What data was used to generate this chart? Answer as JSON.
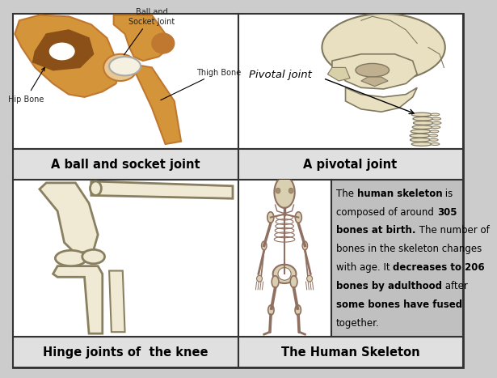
{
  "background_color": "#cccccc",
  "cell_bg_white": "#ffffff",
  "cell_bg_gray": "#c0c0c0",
  "label_bg": "#e0e0e0",
  "border_color": "#333333",
  "top_left_label": "A ball and socket joint",
  "top_right_label": "A pivotal joint",
  "bottom_left_label": "Hinge joints of  the knee",
  "bottom_center_label": "The Human Skeleton",
  "font_size_label": 10.5,
  "font_size_info": 8.5,
  "font_size_annot": 7.5,
  "hip_light": "#d4943a",
  "hip_mid": "#c07830",
  "hip_dark": "#8a5018",
  "hip_socket": "#e8c890",
  "bone_light": "#f0ead5",
  "bone_mid": "#e0d4b0",
  "bone_edge": "#888060",
  "skull_fill": "#e8e0c0",
  "skull_edge": "#807860",
  "info_lines": [
    [
      [
        "The ",
        false
      ],
      [
        "human skeleton",
        true
      ],
      [
        " is",
        false
      ]
    ],
    [
      [
        "composed of around ",
        false
      ],
      [
        "305",
        true
      ]
    ],
    [
      [
        "bones at birth.",
        true
      ],
      [
        " The number of",
        false
      ]
    ],
    [
      [
        "bones in the skeleton changes",
        false
      ]
    ],
    [
      [
        "with age. It ",
        false
      ],
      [
        "decreases to 206",
        true
      ]
    ],
    [
      [
        "bones by adulthood",
        true
      ],
      [
        " after",
        false
      ]
    ],
    [
      [
        "some bones have fused",
        true
      ]
    ],
    [
      [
        "together.",
        false
      ]
    ]
  ]
}
